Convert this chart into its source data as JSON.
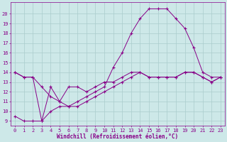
{
  "background_color": "#cde8e8",
  "grid_color": "#aacccc",
  "line_color": "#880088",
  "marker": "+",
  "xlabel": "Windchill (Refroidissement éolien,°C)",
  "xlim": [
    -0.5,
    23.5
  ],
  "ylim": [
    8.5,
    21.2
  ],
  "xticks": [
    0,
    1,
    2,
    3,
    4,
    5,
    6,
    7,
    8,
    9,
    10,
    11,
    12,
    13,
    14,
    15,
    16,
    17,
    18,
    19,
    20,
    21,
    22,
    23
  ],
  "yticks": [
    9,
    10,
    11,
    12,
    13,
    14,
    15,
    16,
    17,
    18,
    19,
    20
  ],
  "series": [
    {
      "x": [
        0,
        1,
        2,
        3,
        4,
        5,
        6,
        7,
        8,
        9,
        10,
        11,
        12,
        13,
        14,
        15,
        16,
        17,
        18,
        19,
        20,
        21,
        22,
        23
      ],
      "y": [
        14.0,
        13.5,
        13.5,
        9.0,
        12.5,
        11.0,
        10.5,
        11.0,
        11.5,
        12.0,
        12.5,
        14.5,
        16.0,
        18.0,
        19.5,
        20.5,
        20.5,
        20.5,
        19.5,
        18.5,
        16.5,
        14.0,
        13.5,
        13.5
      ]
    },
    {
      "x": [
        0,
        1,
        2,
        3,
        4,
        5,
        6,
        7,
        8,
        9,
        10,
        11,
        12,
        13,
        14,
        15,
        16,
        17,
        18,
        19,
        20,
        21,
        22,
        23
      ],
      "y": [
        14.0,
        13.5,
        13.5,
        12.5,
        11.5,
        11.0,
        12.5,
        12.5,
        12.0,
        12.5,
        13.0,
        13.0,
        13.5,
        14.0,
        14.0,
        13.5,
        13.5,
        13.5,
        13.5,
        14.0,
        14.0,
        13.5,
        13.0,
        13.5
      ]
    },
    {
      "x": [
        0,
        1,
        2,
        3,
        4,
        5,
        6,
        7,
        8,
        9,
        10,
        11,
        12,
        13,
        14,
        15,
        16,
        17,
        18,
        19,
        20,
        21,
        22,
        23
      ],
      "y": [
        9.5,
        9.0,
        9.0,
        9.0,
        10.0,
        10.5,
        10.5,
        10.5,
        11.0,
        11.5,
        12.0,
        12.5,
        13.0,
        13.5,
        14.0,
        13.5,
        13.5,
        13.5,
        13.5,
        14.0,
        14.0,
        13.5,
        13.0,
        13.5
      ]
    }
  ]
}
